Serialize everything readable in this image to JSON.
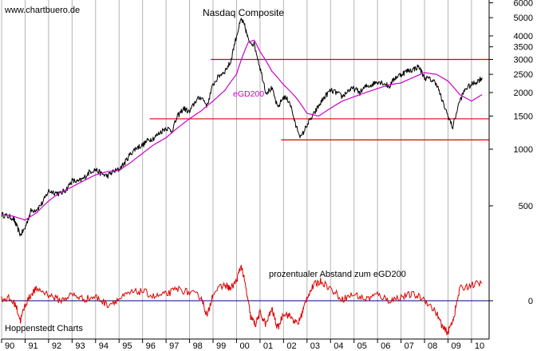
{
  "watermark": "www.chartbuero.de",
  "footer": "Hoppenstedt Charts",
  "colors": {
    "price": "#000000",
    "ema": "#cc00cc",
    "support": "#dd0000",
    "oscillator": "#dd0000",
    "zero_line": "#000080",
    "grid": "#b4b4b4",
    "background": "#ffffff"
  },
  "chart_data": [
    {
      "type": "line",
      "title": "Nasdaq Composite",
      "y_scale": "log",
      "ylim": [
        300,
        7000
      ],
      "grid": true,
      "y_ticks": [
        {
          "value": 6000,
          "label": "6000"
        },
        {
          "value": 5000,
          "label": "5000"
        },
        {
          "value": 4000,
          "label": "4000"
        },
        {
          "value": 3500,
          "label": "3500"
        },
        {
          "value": 3000,
          "label": "3000"
        },
        {
          "value": 2500,
          "label": "2500"
        },
        {
          "value": 2000,
          "label": "2000"
        },
        {
          "value": 1500,
          "label": "1500"
        },
        {
          "value": 1000,
          "label": "1000"
        },
        {
          "value": 500,
          "label": "500"
        }
      ],
      "x_ticks": [
        "90",
        "91",
        "92",
        "93",
        "94",
        "95",
        "96",
        "97",
        "98",
        "99",
        "00",
        "01",
        "02",
        "03",
        "04",
        "05",
        "06",
        "07",
        "08",
        "09",
        "10"
      ],
      "x_range": [
        1990.0,
        2010.75
      ],
      "series": [
        {
          "name": "",
          "x": [
            1990.0,
            1990.25,
            1990.5,
            1990.6,
            1990.8,
            1991.0,
            1991.25,
            1991.5,
            1991.75,
            1992.0,
            1992.25,
            1992.5,
            1992.75,
            1993.0,
            1993.25,
            1993.5,
            1993.75,
            1994.0,
            1994.25,
            1994.5,
            1994.75,
            1995.0,
            1995.25,
            1995.5,
            1995.75,
            1996.0,
            1996.25,
            1996.5,
            1996.75,
            1997.0,
            1997.25,
            1997.5,
            1997.75,
            1998.0,
            1998.25,
            1998.5,
            1998.75,
            1999.0,
            1999.25,
            1999.5,
            1999.75,
            2000.0,
            2000.2,
            2000.35,
            2000.5,
            2000.75,
            2001.0,
            2001.25,
            2001.5,
            2001.75,
            2002.0,
            2002.25,
            2002.5,
            2002.75,
            2003.0,
            2003.25,
            2003.5,
            2003.75,
            2004.0,
            2004.25,
            2004.5,
            2004.75,
            2005.0,
            2005.25,
            2005.5,
            2005.75,
            2006.0,
            2006.25,
            2006.5,
            2006.75,
            2007.0,
            2007.25,
            2007.5,
            2007.75,
            2008.0,
            2008.25,
            2008.5,
            2008.75,
            2009.0,
            2009.2,
            2009.5,
            2009.75,
            2010.0,
            2010.25,
            2010.45
          ],
          "values": [
            450,
            440,
            430,
            400,
            350,
            380,
            470,
            480,
            520,
            600,
            590,
            580,
            610,
            680,
            670,
            700,
            760,
            780,
            740,
            720,
            760,
            780,
            850,
            950,
            1020,
            1050,
            1120,
            1150,
            1230,
            1300,
            1250,
            1500,
            1650,
            1570,
            1800,
            1900,
            1700,
            2200,
            2450,
            2600,
            2900,
            4000,
            4900,
            4500,
            3800,
            3600,
            2700,
            2000,
            2100,
            1650,
            1900,
            1800,
            1350,
            1150,
            1350,
            1500,
            1700,
            1900,
            2050,
            2000,
            1900,
            2050,
            2100,
            2000,
            2150,
            2200,
            2300,
            2250,
            2150,
            2400,
            2500,
            2600,
            2650,
            2750,
            2400,
            2350,
            2250,
            1800,
            1500,
            1300,
            1800,
            2100,
            2200,
            2300,
            2400
          ]
        },
        {
          "name": "eGD200",
          "x": [
            1990.0,
            1990.5,
            1991.0,
            1991.5,
            1992.0,
            1992.5,
            1993.0,
            1993.5,
            1994.0,
            1994.5,
            1995.0,
            1995.5,
            1996.0,
            1996.5,
            1997.0,
            1997.5,
            1998.0,
            1998.5,
            1999.0,
            1999.5,
            2000.0,
            2000.25,
            2000.5,
            2000.75,
            2001.0,
            2001.5,
            2002.0,
            2002.5,
            2003.0,
            2003.5,
            2004.0,
            2004.5,
            2005.0,
            2005.5,
            2006.0,
            2006.5,
            2007.0,
            2007.5,
            2008.0,
            2008.5,
            2009.0,
            2009.5,
            2010.0,
            2010.45
          ],
          "values": [
            450,
            440,
            420,
            460,
            530,
            590,
            630,
            680,
            730,
            760,
            770,
            850,
            950,
            1060,
            1150,
            1300,
            1450,
            1600,
            1800,
            2050,
            2500,
            3100,
            3700,
            3800,
            3300,
            2600,
            2200,
            1900,
            1550,
            1500,
            1650,
            1800,
            1900,
            2000,
            2100,
            2200,
            2250,
            2400,
            2550,
            2500,
            2300,
            1950,
            1800,
            1950
          ]
        }
      ],
      "series_labels": [
        {
          "series": "eGD200",
          "text": "eGD200"
        }
      ],
      "horizontal_lines": [
        {
          "y": 3000,
          "x_from": 1998.9,
          "x_to": 2010.75
        },
        {
          "y": 1450,
          "x_from": 1996.3,
          "x_to": 2010.75
        },
        {
          "y": 1120,
          "x_from": 2001.9,
          "x_to": 2010.75
        }
      ]
    },
    {
      "type": "line",
      "title": "prozentualer Abstand zum eGD200",
      "ylim": [
        -60,
        70
      ],
      "y_ticks": [
        {
          "value": 0,
          "label": "0"
        }
      ],
      "x_range": [
        1990.0,
        2010.75
      ],
      "series": [
        {
          "name": "",
          "x": [
            1990.0,
            1990.3,
            1990.6,
            1990.8,
            1991.0,
            1991.3,
            1991.5,
            1992.0,
            1992.5,
            1993.0,
            1993.5,
            1994.0,
            1994.5,
            1995.0,
            1995.5,
            1996.0,
            1996.5,
            1997.0,
            1997.5,
            1998.0,
            1998.5,
            1998.75,
            1999.0,
            1999.5,
            1999.75,
            2000.0,
            2000.2,
            2000.4,
            2000.6,
            2000.8,
            2001.0,
            2001.25,
            2001.5,
            2001.75,
            2002.0,
            2002.3,
            2002.6,
            2002.8,
            2003.0,
            2003.3,
            2003.6,
            2004.0,
            2004.5,
            2005.0,
            2005.5,
            2006.0,
            2006.5,
            2007.0,
            2007.5,
            2008.0,
            2008.5,
            2008.8,
            2009.0,
            2009.25,
            2009.5,
            2010.0,
            2010.45
          ],
          "values": [
            2,
            3,
            -5,
            -25,
            -5,
            10,
            15,
            8,
            0,
            8,
            2,
            5,
            -5,
            2,
            10,
            12,
            5,
            8,
            15,
            10,
            5,
            -20,
            10,
            20,
            15,
            25,
            45,
            15,
            -20,
            -30,
            -15,
            -30,
            -10,
            -35,
            -15,
            -20,
            -30,
            -15,
            5,
            20,
            25,
            15,
            2,
            8,
            2,
            8,
            0,
            5,
            8,
            2,
            -15,
            -35,
            -40,
            -20,
            15,
            20,
            22
          ]
        }
      ]
    }
  ]
}
